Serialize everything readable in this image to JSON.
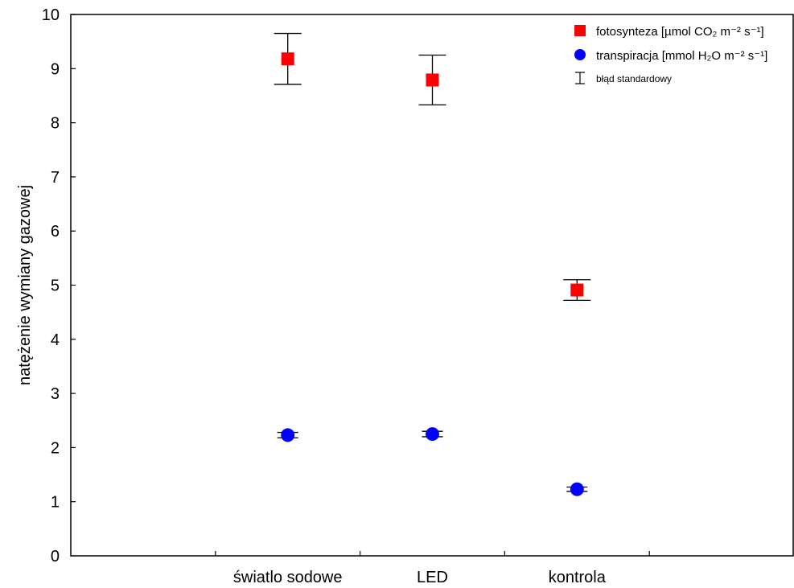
{
  "chart_data": {
    "type": "scatter",
    "title": "",
    "xlabel": "",
    "ylabel": "natężenie wymiany gazowej",
    "categories": [
      "światlo sodowe",
      "LED",
      "kontrola"
    ],
    "ylim": [
      0,
      10
    ],
    "yticks": [
      0,
      1,
      2,
      3,
      4,
      5,
      6,
      7,
      8,
      9,
      10
    ],
    "grid": false,
    "legend_position": "top-right",
    "series": [
      {
        "name": "fotosynteza [µmol CO₂ m⁻² s⁻¹]",
        "marker": "square",
        "color": "#ff0000",
        "values": [
          9.18,
          8.79,
          4.91
        ],
        "error": [
          0.47,
          0.46,
          0.19
        ]
      },
      {
        "name": "transpiracja [mmol H₂O m⁻² s⁻¹]",
        "marker": "circle",
        "color": "#0000ff",
        "values": [
          2.23,
          2.25,
          1.23
        ],
        "error": [
          0.05,
          0.05,
          0.04
        ]
      }
    ],
    "legend_error_label": "błąd standardowy"
  }
}
